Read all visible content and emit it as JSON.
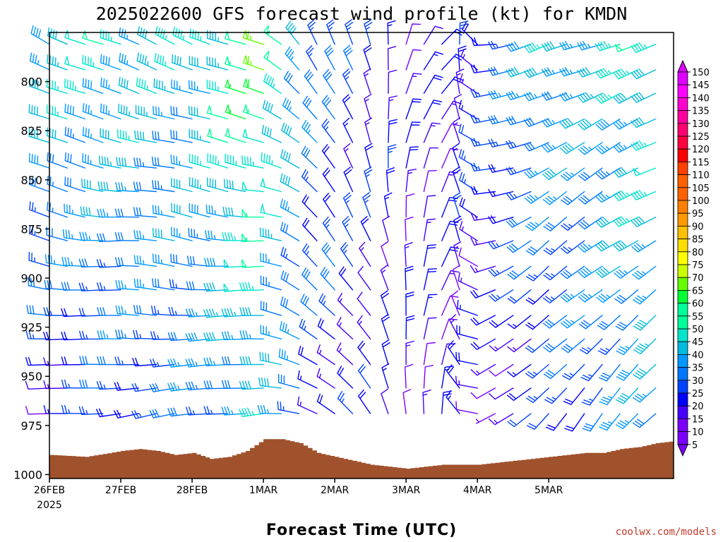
{
  "title": "2025022600 GFS forecast wind profile (kt) for KMDN",
  "xlabel": "Forecast Time (UTC)",
  "credit": "coolwx.com/models",
  "colors": {
    "terrain": "#a0522d",
    "colorbar": [
      "#7b00ff",
      "#4400ff",
      "#0000ff",
      "#0044ff",
      "#0077ff",
      "#0099ff",
      "#00bbdd",
      "#00e5cc",
      "#00ff99",
      "#00ff33",
      "#66ff00",
      "#ccff00",
      "#ffff00",
      "#ffdd00",
      "#ffc000",
      "#ff9900",
      "#ff8000",
      "#ff6000",
      "#ff4000",
      "#ff0000",
      "#ff0040",
      "#ff0070",
      "#ff00a0",
      "#ff00d0",
      "#ff00ff",
      "#dd00ff"
    ]
  },
  "chart_data": {
    "type": "wind-barb time-height cross-section",
    "x_tick_labels": [
      "26FEB",
      "27FEB",
      "28FEB",
      "1MAR",
      "2MAR",
      "3MAR",
      "4MAR",
      "5MAR"
    ],
    "x_year_label": "2025",
    "xlim_hours": [
      0,
      210
    ],
    "ylim_hPa": [
      1002,
      775
    ],
    "y_ticks": [
      800,
      825,
      850,
      875,
      900,
      925,
      950,
      975,
      1000
    ],
    "y_tick_labels": [
      "800",
      "825",
      "850",
      "875",
      "900",
      "925",
      "950",
      "975",
      "1000"
    ],
    "colorbar_labels": [
      "5",
      "10",
      "15",
      "20",
      "25",
      "30",
      "35",
      "40",
      "45",
      "50",
      "55",
      "60",
      "65",
      "70",
      "75",
      "80",
      "85",
      "90",
      "95",
      "100",
      "105",
      "110",
      "115",
      "120",
      "125",
      "130",
      "135",
      "140",
      "145",
      "150"
    ],
    "barb_levels_hPa": [
      781,
      794,
      806,
      819,
      831,
      844,
      856,
      869,
      881,
      894,
      906,
      919,
      931,
      944,
      956,
      969
    ],
    "barb_hours": [
      0,
      6,
      12,
      18,
      24,
      30,
      36,
      42,
      48,
      54,
      60,
      66,
      72,
      78,
      84,
      90,
      96,
      102,
      108,
      114,
      120,
      126,
      132,
      138,
      144,
      150,
      156,
      162,
      168,
      174,
      180,
      186,
      192,
      198,
      204
    ],
    "wind_keypoints": [
      {
        "h": 0,
        "dir": 300,
        "top_kt": 45,
        "low_kt": 10
      },
      {
        "h": 24,
        "dir": 290,
        "top_kt": 45,
        "low_kt": 20
      },
      {
        "h": 48,
        "dir": 295,
        "top_kt": 40,
        "low_kt": 25
      },
      {
        "h": 72,
        "dir": 290,
        "top_kt": 60,
        "low_kt": 35
      },
      {
        "h": 90,
        "dir": 330,
        "top_kt": 30,
        "low_kt": 20
      },
      {
        "h": 108,
        "dir": 350,
        "top_kt": 20,
        "low_kt": 15
      },
      {
        "h": 120,
        "dir": 20,
        "top_kt": 15,
        "low_kt": 15
      },
      {
        "h": 132,
        "dir": 40,
        "top_kt": 15,
        "low_kt": 15
      },
      {
        "h": 150,
        "dir": 270,
        "top_kt": 25,
        "low_kt": 10
      },
      {
        "h": 168,
        "dir": 250,
        "top_kt": 40,
        "low_kt": 15
      },
      {
        "h": 186,
        "dir": 250,
        "top_kt": 40,
        "low_kt": 25
      },
      {
        "h": 210,
        "dir": 255,
        "top_kt": 50,
        "low_kt": 35
      }
    ],
    "surface_pressure_keypoints": [
      {
        "h": 0,
        "p": 990
      },
      {
        "h": 12,
        "p": 991
      },
      {
        "h": 24,
        "p": 988
      },
      {
        "h": 30,
        "p": 987
      },
      {
        "h": 36,
        "p": 988
      },
      {
        "h": 42,
        "p": 990
      },
      {
        "h": 48,
        "p": 989
      },
      {
        "h": 54,
        "p": 992
      },
      {
        "h": 60,
        "p": 991
      },
      {
        "h": 66,
        "p": 988
      },
      {
        "h": 72,
        "p": 982
      },
      {
        "h": 78,
        "p": 982
      },
      {
        "h": 84,
        "p": 984
      },
      {
        "h": 90,
        "p": 989
      },
      {
        "h": 96,
        "p": 991
      },
      {
        "h": 102,
        "p": 993
      },
      {
        "h": 108,
        "p": 995
      },
      {
        "h": 114,
        "p": 996
      },
      {
        "h": 120,
        "p": 997
      },
      {
        "h": 126,
        "p": 996
      },
      {
        "h": 132,
        "p": 995
      },
      {
        "h": 138,
        "p": 995
      },
      {
        "h": 144,
        "p": 995
      },
      {
        "h": 150,
        "p": 994
      },
      {
        "h": 156,
        "p": 993
      },
      {
        "h": 162,
        "p": 992
      },
      {
        "h": 168,
        "p": 991
      },
      {
        "h": 174,
        "p": 990
      },
      {
        "h": 180,
        "p": 989
      },
      {
        "h": 186,
        "p": 989
      },
      {
        "h": 192,
        "p": 987
      },
      {
        "h": 198,
        "p": 986
      },
      {
        "h": 204,
        "p": 984
      },
      {
        "h": 210,
        "p": 983
      }
    ]
  }
}
